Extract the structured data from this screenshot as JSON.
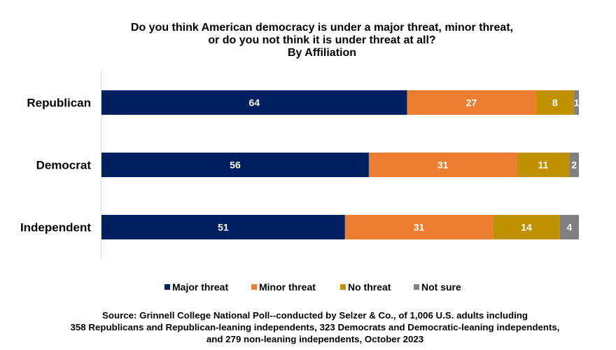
{
  "chart_data": {
    "type": "bar",
    "orientation": "horizontal",
    "stacked": true,
    "title_lines": [
      "Do you think American democracy is under a major threat, minor threat,",
      "or do you not think it is under threat at all?",
      "By Affiliation"
    ],
    "categories": [
      "Republican",
      "Democrat",
      "Independent"
    ],
    "series": [
      {
        "name": "Major threat",
        "color": "#002060",
        "values": [
          64,
          56,
          51
        ]
      },
      {
        "name": "Minor threat",
        "color": "#ED7D31",
        "values": [
          27,
          31,
          31
        ]
      },
      {
        "name": "No threat",
        "color": "#BF9000",
        "values": [
          8,
          11,
          14
        ]
      },
      {
        "name": "Not sure",
        "color": "#808080",
        "values": [
          1,
          2,
          4
        ]
      }
    ],
    "xlim": [
      0,
      100
    ],
    "grid": false,
    "legend_position": "bottom",
    "source_lines": [
      "Source: Grinnell College National Poll--conducted by Selzer & Co., of 1,006 U.S. adults including",
      "358 Republicans and Republican-leaning independents, 323 Democrats and Democratic-leaning independents,",
      "and 279 non-leaning independents, October 2023"
    ]
  }
}
